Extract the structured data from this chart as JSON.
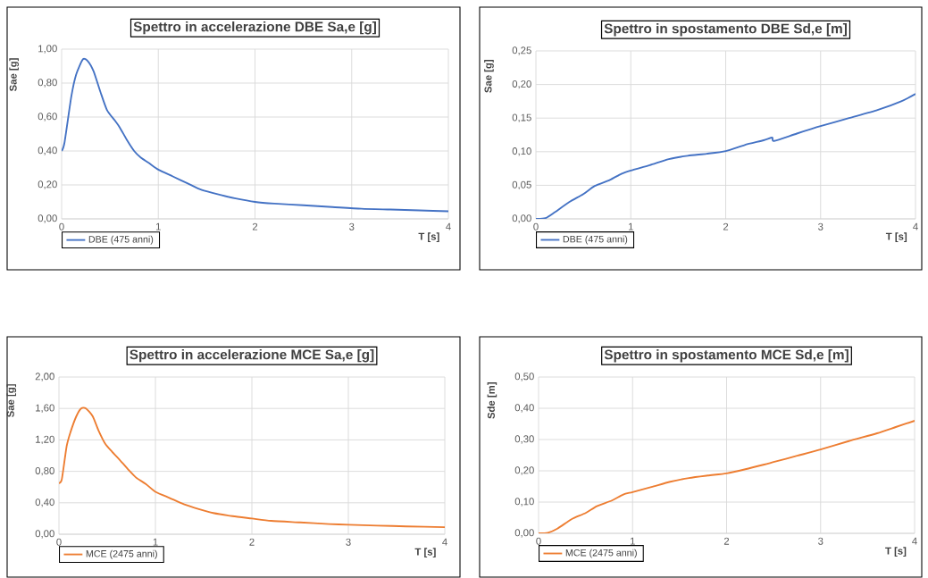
{
  "chart_data": [
    {
      "type": "line",
      "title": "Spettro in accelerazione DBE Sa,e [g]",
      "xlabel": "T [s]",
      "ylabel": "Sae [g]",
      "xlim": [
        0,
        4
      ],
      "xticks": [
        0,
        1,
        2,
        3,
        4
      ],
      "ylim": [
        0,
        1
      ],
      "yticks": [
        {
          "value": 0,
          "label": "0,00"
        },
        {
          "value": 0.2,
          "label": "0,20"
        },
        {
          "value": 0.4,
          "label": "0,40"
        },
        {
          "value": 0.6,
          "label": "0,60"
        },
        {
          "value": 0.8,
          "label": "0,80"
        },
        {
          "value": 1,
          "label": "1,00"
        }
      ],
      "grid": true,
      "legend": "bottom left",
      "x": [
        0,
        0.03,
        0.1,
        0.15,
        0.22,
        0.27,
        0.33,
        0.4,
        0.47,
        0.55,
        0.6,
        0.68,
        0.75,
        0.82,
        0.9,
        1.0,
        1.15,
        1.3,
        1.45,
        1.65,
        1.8,
        2.0,
        2.2,
        2.5,
        2.8,
        3.1,
        3.4,
        3.7,
        4.0
      ],
      "series": [
        {
          "name": "DBE (475 anni)",
          "color": "#4472c4",
          "values": [
            0.4,
            0.45,
            0.72,
            0.85,
            0.94,
            0.93,
            0.87,
            0.75,
            0.64,
            0.58,
            0.54,
            0.46,
            0.4,
            0.36,
            0.33,
            0.29,
            0.25,
            0.21,
            0.17,
            0.14,
            0.12,
            0.1,
            0.09,
            0.08,
            0.07,
            0.06,
            0.055,
            0.05,
            0.045
          ]
        }
      ]
    },
    {
      "type": "line",
      "title": "Spettro in spostamento DBE Sd,e [m]",
      "xlabel": "T [s]",
      "ylabel": "Sae [g]",
      "xlim": [
        0,
        4
      ],
      "xticks": [
        0,
        1,
        2,
        3,
        4
      ],
      "ylim": [
        0,
        0.25
      ],
      "yticks": [
        {
          "value": 0,
          "label": "0,00"
        },
        {
          "value": 0.05,
          "label": "0,05"
        },
        {
          "value": 0.1,
          "label": "0,10"
        },
        {
          "value": 0.15,
          "label": "0,15"
        },
        {
          "value": 0.2,
          "label": "0,20"
        },
        {
          "value": 0.25,
          "label": "0,25"
        }
      ],
      "grid": true,
      "legend": "bottom left",
      "x": [
        0,
        0.1,
        0.2,
        0.35,
        0.5,
        0.62,
        0.78,
        0.9,
        1.0,
        1.2,
        1.4,
        1.6,
        1.8,
        2.0,
        2.2,
        2.4,
        2.49,
        2.51,
        2.75,
        3.0,
        3.3,
        3.6,
        3.85,
        4.0
      ],
      "series": [
        {
          "name": "DBE (475 anni)",
          "color": "#4472c4",
          "values": [
            0,
            0.001,
            0.01,
            0.025,
            0.037,
            0.049,
            0.058,
            0.067,
            0.072,
            0.08,
            0.089,
            0.094,
            0.097,
            0.101,
            0.11,
            0.117,
            0.121,
            0.116,
            0.127,
            0.138,
            0.15,
            0.162,
            0.175,
            0.186
          ]
        }
      ]
    },
    {
      "type": "line",
      "title": "Spettro in accelerazione MCE Sa,e [g]",
      "xlabel": "T [s]",
      "ylabel": "Sae [g]",
      "xlim": [
        0,
        4
      ],
      "xticks": [
        0,
        1,
        2,
        3,
        4
      ],
      "ylim": [
        0,
        2
      ],
      "yticks": [
        {
          "value": 0,
          "label": "0,00"
        },
        {
          "value": 0.4,
          "label": "0,40"
        },
        {
          "value": 0.8,
          "label": "0,80"
        },
        {
          "value": 1.2,
          "label": "1,20"
        },
        {
          "value": 1.6,
          "label": "1,60"
        },
        {
          "value": 2,
          "label": "2,00"
        }
      ],
      "grid": true,
      "legend": "bottom left",
      "x": [
        0,
        0.03,
        0.08,
        0.12,
        0.18,
        0.23,
        0.28,
        0.35,
        0.41,
        0.48,
        0.55,
        0.62,
        0.72,
        0.8,
        0.9,
        1.0,
        1.15,
        1.3,
        1.45,
        1.6,
        1.8,
        2.0,
        2.2,
        2.5,
        2.8,
        3.0,
        3.3,
        3.6,
        4.0
      ],
      "series": [
        {
          "name": "MCE (2475 anni)",
          "color": "#ed7d31",
          "values": [
            0.65,
            0.7,
            1.12,
            1.3,
            1.5,
            1.6,
            1.6,
            1.5,
            1.32,
            1.15,
            1.05,
            0.96,
            0.82,
            0.72,
            0.64,
            0.54,
            0.46,
            0.38,
            0.32,
            0.27,
            0.23,
            0.2,
            0.17,
            0.15,
            0.13,
            0.12,
            0.11,
            0.1,
            0.09
          ]
        }
      ]
    },
    {
      "type": "line",
      "title": "Spettro in spostamento MCE Sd,e [m]",
      "xlabel": "T [s]",
      "ylabel": "Sde [m]",
      "xlim": [
        0,
        4
      ],
      "xticks": [
        0,
        1,
        2,
        3,
        4
      ],
      "ylim": [
        0,
        0.5
      ],
      "yticks": [
        {
          "value": 0,
          "label": "0,00"
        },
        {
          "value": 0.1,
          "label": "0,10"
        },
        {
          "value": 0.2,
          "label": "0,20"
        },
        {
          "value": 0.3,
          "label": "0,30"
        },
        {
          "value": 0.4,
          "label": "0,40"
        },
        {
          "value": 0.5,
          "label": "0,50"
        }
      ],
      "grid": true,
      "legend": "bottom left",
      "x": [
        0,
        0.1,
        0.2,
        0.35,
        0.5,
        0.62,
        0.78,
        0.9,
        1.0,
        1.2,
        1.4,
        1.6,
        1.8,
        2.0,
        2.2,
        2.4,
        2.5,
        2.75,
        3.0,
        3.3,
        3.6,
        3.8,
        4.0
      ],
      "series": [
        {
          "name": "MCE (2475 anni)",
          "color": "#ed7d31",
          "values": [
            0,
            0.002,
            0.015,
            0.045,
            0.065,
            0.087,
            0.105,
            0.124,
            0.132,
            0.148,
            0.165,
            0.177,
            0.185,
            0.192,
            0.205,
            0.22,
            0.228,
            0.248,
            0.268,
            0.295,
            0.32,
            0.34,
            0.36
          ]
        }
      ]
    }
  ]
}
